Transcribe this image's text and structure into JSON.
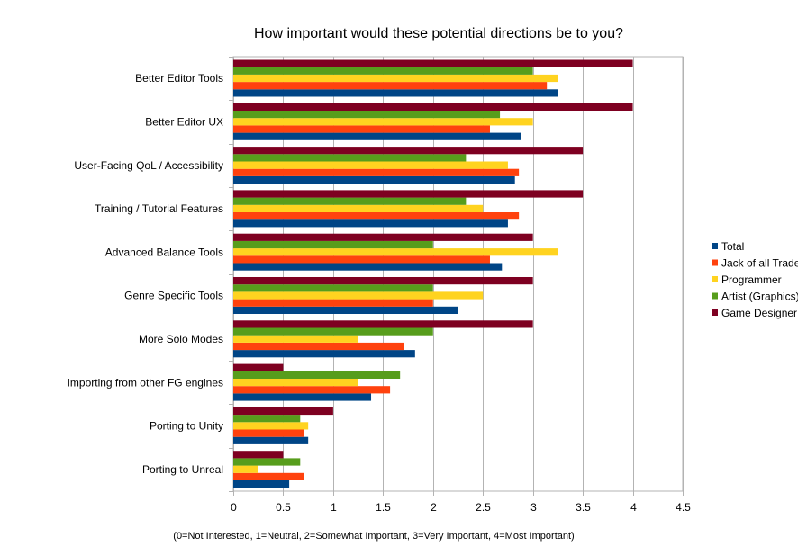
{
  "chart_data": {
    "type": "bar",
    "orientation": "horizontal",
    "title": "How important would these potential directions be to you?",
    "xlabel": "(0=Not Interested, 1=Neutral, 2=Somewhat Important, 3=Very Important, 4=Most Important)",
    "ylabel": "",
    "xlim": [
      0,
      4.5
    ],
    "xticks": [
      "0",
      "0.5",
      "1",
      "1.5",
      "2",
      "2.5",
      "3",
      "3.5",
      "4",
      "4.5"
    ],
    "grid": "vertical",
    "legend_position": "right",
    "categories": [
      "Better Editor Tools",
      "Better Editor UX",
      "User-Facing QoL / Accessibility",
      "Training / Tutorial Features",
      "Advanced Balance Tools",
      "Genre Specific Tools",
      "More Solo Modes",
      "Importing from other FG engines",
      "Porting to Unity",
      "Porting to Unreal"
    ],
    "series": [
      {
        "name": "Total",
        "color": "#004586",
        "values": [
          3.25,
          2.88,
          2.82,
          2.75,
          2.69,
          2.25,
          1.82,
          1.38,
          0.75,
          0.56
        ]
      },
      {
        "name": "Jack of all Trades",
        "color": "#ff420e",
        "values": [
          3.14,
          2.57,
          2.86,
          2.86,
          2.57,
          2.0,
          1.71,
          1.57,
          0.71,
          0.71
        ]
      },
      {
        "name": "Programmer",
        "color": "#ffd320",
        "values": [
          3.25,
          3.0,
          2.75,
          2.5,
          3.25,
          2.5,
          1.25,
          1.25,
          0.75,
          0.25
        ]
      },
      {
        "name": "Artist (Graphics)",
        "color": "#579d1c",
        "values": [
          3.0,
          2.67,
          2.33,
          2.33,
          2.0,
          2.0,
          2.0,
          1.67,
          0.67,
          0.67
        ]
      },
      {
        "name": "Game Designer",
        "color": "#7e0021",
        "values": [
          4.0,
          4.0,
          3.5,
          3.5,
          3.0,
          3.0,
          3.0,
          0.5,
          1.0,
          0.5
        ]
      }
    ]
  }
}
